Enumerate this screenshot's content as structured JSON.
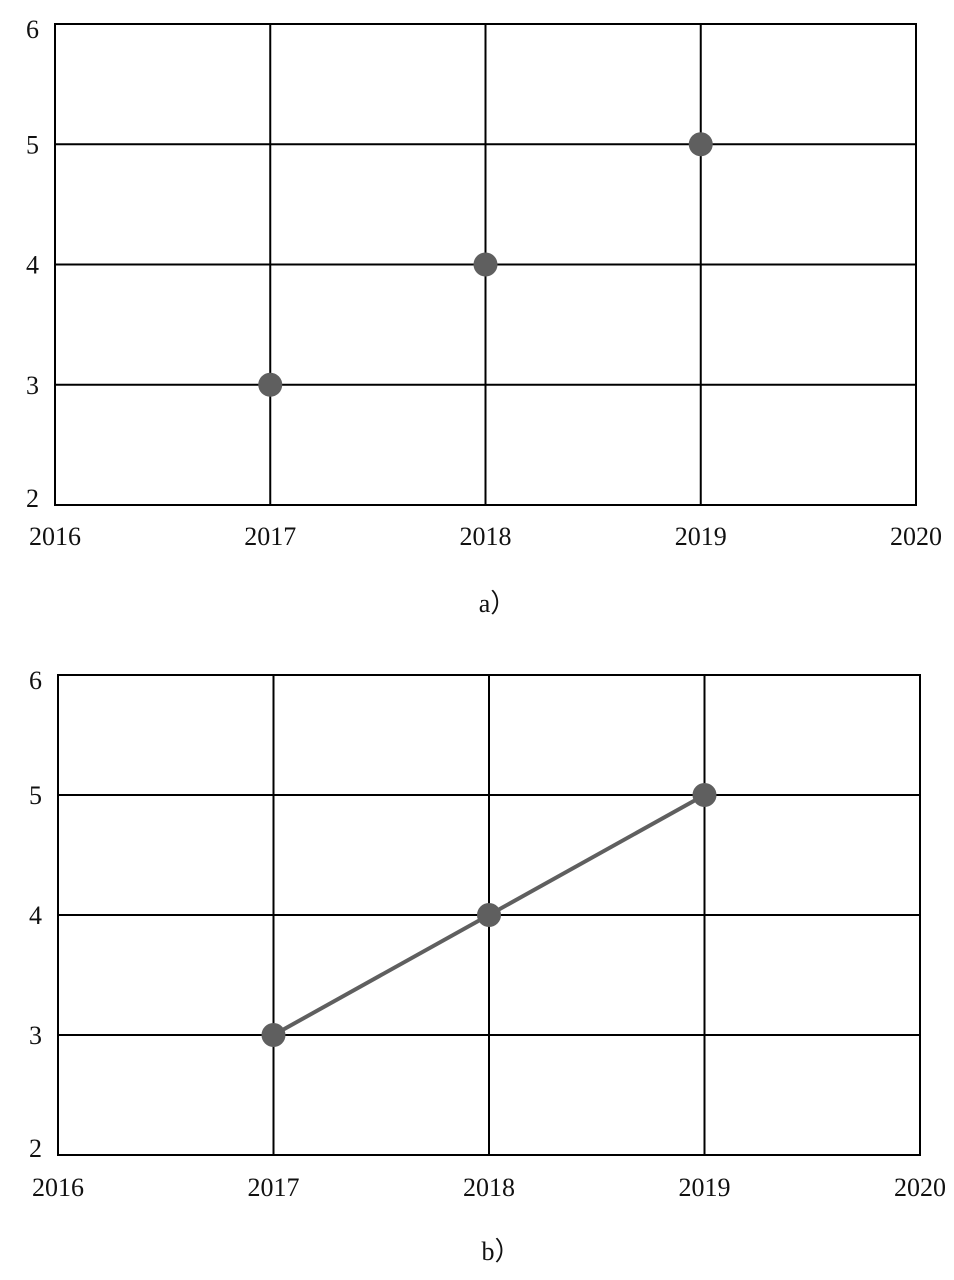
{
  "chart_data": [
    {
      "type": "scatter",
      "caption": "a）",
      "x": [
        2017,
        2018,
        2019
      ],
      "y": [
        3,
        4,
        5
      ],
      "xlim": [
        2016,
        2020
      ],
      "ylim": [
        2,
        6
      ],
      "xticks": [
        "2016",
        "2017",
        "2018",
        "2019",
        "2020"
      ],
      "yticks": [
        "2",
        "3",
        "4",
        "5",
        "6"
      ],
      "grid": true,
      "connect_points": false,
      "marker_color": "#5f5f5f",
      "line_color": "#5f5f5f",
      "title": "",
      "xlabel": "",
      "ylabel": ""
    },
    {
      "type": "line",
      "caption": "b）",
      "x": [
        2017,
        2018,
        2019
      ],
      "y": [
        3,
        4,
        5
      ],
      "xlim": [
        2016,
        2020
      ],
      "ylim": [
        2,
        6
      ],
      "xticks": [
        "2016",
        "2017",
        "2018",
        "2019",
        "2020"
      ],
      "yticks": [
        "2",
        "3",
        "4",
        "5",
        "6"
      ],
      "grid": true,
      "connect_points": true,
      "marker_color": "#5f5f5f",
      "line_color": "#5f5f5f",
      "title": "",
      "xlabel": "",
      "ylabel": ""
    }
  ]
}
